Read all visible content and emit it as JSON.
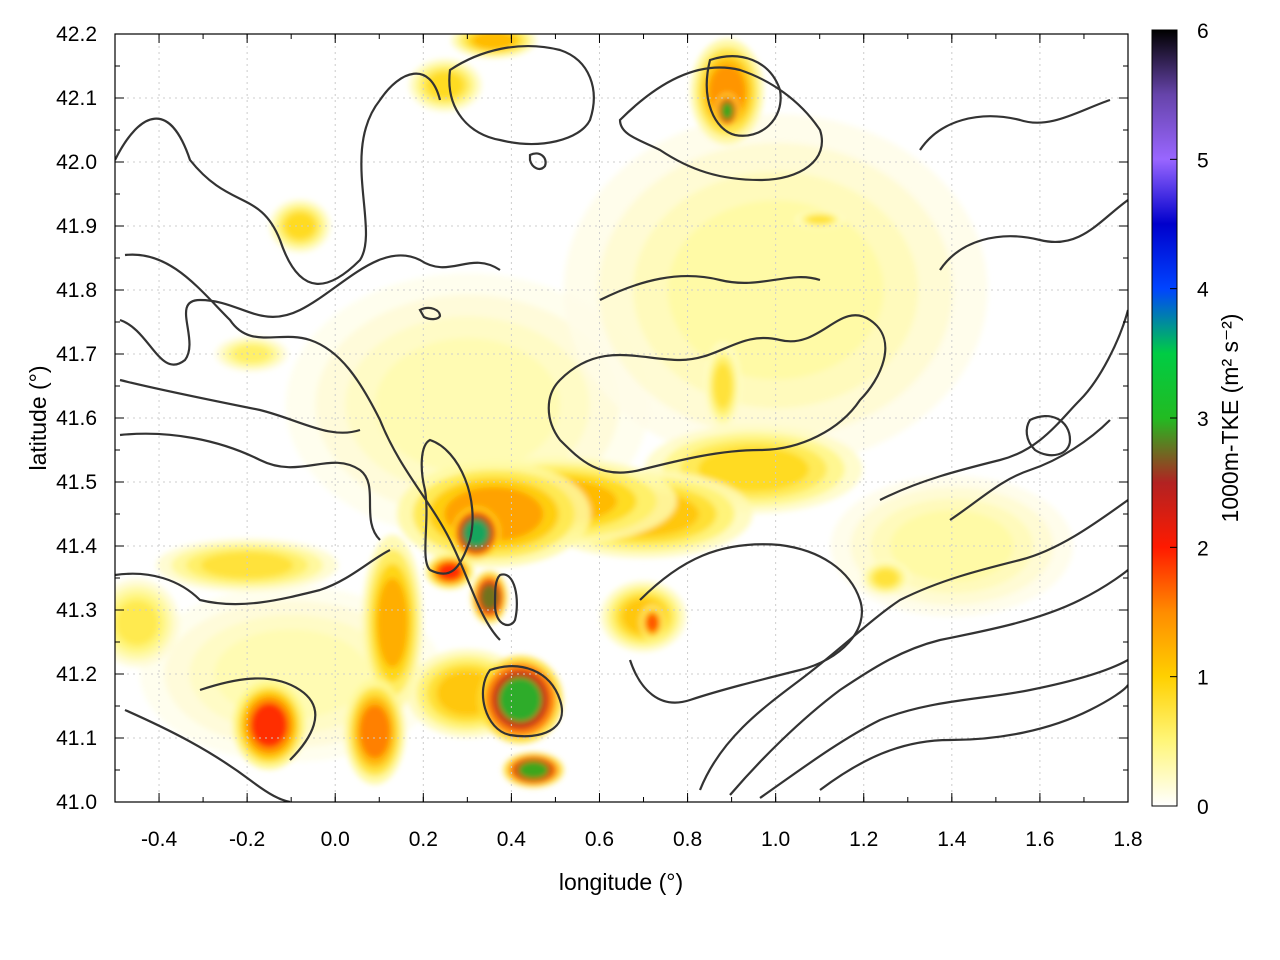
{
  "chart_data": {
    "type": "heatmap",
    "xlabel": "longitude (°)",
    "ylabel": "latitude (°)",
    "colorbar_label": "1000m-TKE (m² s⁻²)",
    "xlim": [
      -0.5,
      1.8
    ],
    "ylim": [
      41.0,
      42.2
    ],
    "x_ticks": [
      "-0.4",
      "-0.2",
      "0.0",
      "0.2",
      "0.4",
      "0.6",
      "0.8",
      "1.0",
      "1.2",
      "1.4",
      "1.6",
      "1.8"
    ],
    "y_ticks": [
      "41.0",
      "41.1",
      "41.2",
      "41.3",
      "41.4",
      "41.5",
      "41.6",
      "41.7",
      "41.8",
      "41.9",
      "42.0",
      "42.1",
      "42.2"
    ],
    "colorbar_range": [
      0,
      6
    ],
    "colorbar_ticks": [
      "0",
      "1",
      "2",
      "3",
      "4",
      "5",
      "6"
    ],
    "colorscale": [
      "#ffffff",
      "#fff67a",
      "#ffd000",
      "#ff8c00",
      "#ff1a00",
      "#b22222",
      "#22bb22",
      "#00cc44",
      "#0044ff",
      "#0000cc",
      "#9966ff",
      "#6644aa",
      "#000000"
    ],
    "grid": true,
    "contour_color": "#333333",
    "hotspots": [
      {
        "lon": 0.36,
        "lat": 41.45,
        "tke": 1.4,
        "rlon": 0.16,
        "rlat": 0.06
      },
      {
        "lon": 0.5,
        "lat": 41.47,
        "tke": 1.2,
        "rlon": 0.2,
        "rlat": 0.05
      },
      {
        "lon": 0.7,
        "lat": 41.45,
        "tke": 1.1,
        "rlon": 0.18,
        "rlat": 0.05
      },
      {
        "lon": 0.95,
        "lat": 41.52,
        "tke": 0.9,
        "rlon": 0.18,
        "rlat": 0.05
      },
      {
        "lon": 0.32,
        "lat": 41.42,
        "tke": 3.6,
        "rlon": 0.04,
        "rlat": 0.03
      },
      {
        "lon": 0.35,
        "lat": 41.32,
        "tke": 2.8,
        "rlon": 0.03,
        "rlat": 0.03
      },
      {
        "lon": 0.26,
        "lat": 41.36,
        "tke": 2.0,
        "rlon": 0.04,
        "rlat": 0.02
      },
      {
        "lon": 0.13,
        "lat": 41.28,
        "tke": 1.3,
        "rlon": 0.05,
        "rlat": 0.1
      },
      {
        "lon": 0.09,
        "lat": 41.11,
        "tke": 1.6,
        "rlon": 0.05,
        "rlat": 0.06
      },
      {
        "lon": 0.42,
        "lat": 41.16,
        "tke": 3.2,
        "rlon": 0.07,
        "rlat": 0.05
      },
      {
        "lon": 0.3,
        "lat": 41.17,
        "tke": 1.1,
        "rlon": 0.1,
        "rlat": 0.05
      },
      {
        "lon": 0.45,
        "lat": 41.05,
        "tke": 3.0,
        "rlon": 0.05,
        "rlat": 0.02
      },
      {
        "lon": -0.15,
        "lat": 41.12,
        "tke": 2.0,
        "rlon": 0.06,
        "rlat": 0.05
      },
      {
        "lon": -0.2,
        "lat": 41.37,
        "tke": 0.8,
        "rlon": 0.15,
        "rlat": 0.03
      },
      {
        "lon": -0.45,
        "lat": 41.28,
        "tke": 0.7,
        "rlon": 0.07,
        "rlat": 0.05
      },
      {
        "lon": 0.7,
        "lat": 41.29,
        "tke": 1.1,
        "rlon": 0.07,
        "rlat": 0.04
      },
      {
        "lon": 0.72,
        "lat": 41.28,
        "tke": 1.8,
        "rlon": 0.02,
        "rlat": 0.02
      },
      {
        "lon": 0.89,
        "lat": 42.11,
        "tke": 1.5,
        "rlon": 0.06,
        "rlat": 0.06
      },
      {
        "lon": 0.89,
        "lat": 42.08,
        "tke": 3.0,
        "rlon": 0.02,
        "rlat": 0.02
      },
      {
        "lon": 0.36,
        "lat": 42.19,
        "tke": 1.2,
        "rlon": 0.07,
        "rlat": 0.02
      },
      {
        "lon": 0.25,
        "lat": 42.12,
        "tke": 0.9,
        "rlon": 0.06,
        "rlat": 0.03
      },
      {
        "lon": -0.08,
        "lat": 41.9,
        "tke": 0.9,
        "rlon": 0.05,
        "rlat": 0.03
      },
      {
        "lon": -0.19,
        "lat": 41.7,
        "tke": 0.6,
        "rlon": 0.06,
        "rlat": 0.02
      },
      {
        "lon": 0.88,
        "lat": 41.65,
        "tke": 0.8,
        "rlon": 0.03,
        "rlat": 0.05
      },
      {
        "lon": 1.25,
        "lat": 41.35,
        "tke": 0.8,
        "rlon": 0.04,
        "rlat": 0.02
      },
      {
        "lon": 1.1,
        "lat": 41.91,
        "tke": 0.8,
        "rlon": 0.04,
        "rlat": 0.01
      },
      {
        "lon": 1.0,
        "lat": 41.8,
        "tke": 0.35,
        "rlon": 0.35,
        "rlat": 0.2
      },
      {
        "lon": 0.3,
        "lat": 41.62,
        "tke": 0.3,
        "rlon": 0.3,
        "rlat": 0.15
      },
      {
        "lon": 1.4,
        "lat": 41.4,
        "tke": 0.35,
        "rlon": 0.2,
        "rlat": 0.08
      },
      {
        "lon": -0.1,
        "lat": 41.2,
        "tke": 0.3,
        "rlon": 0.25,
        "rlat": 0.1
      }
    ]
  }
}
